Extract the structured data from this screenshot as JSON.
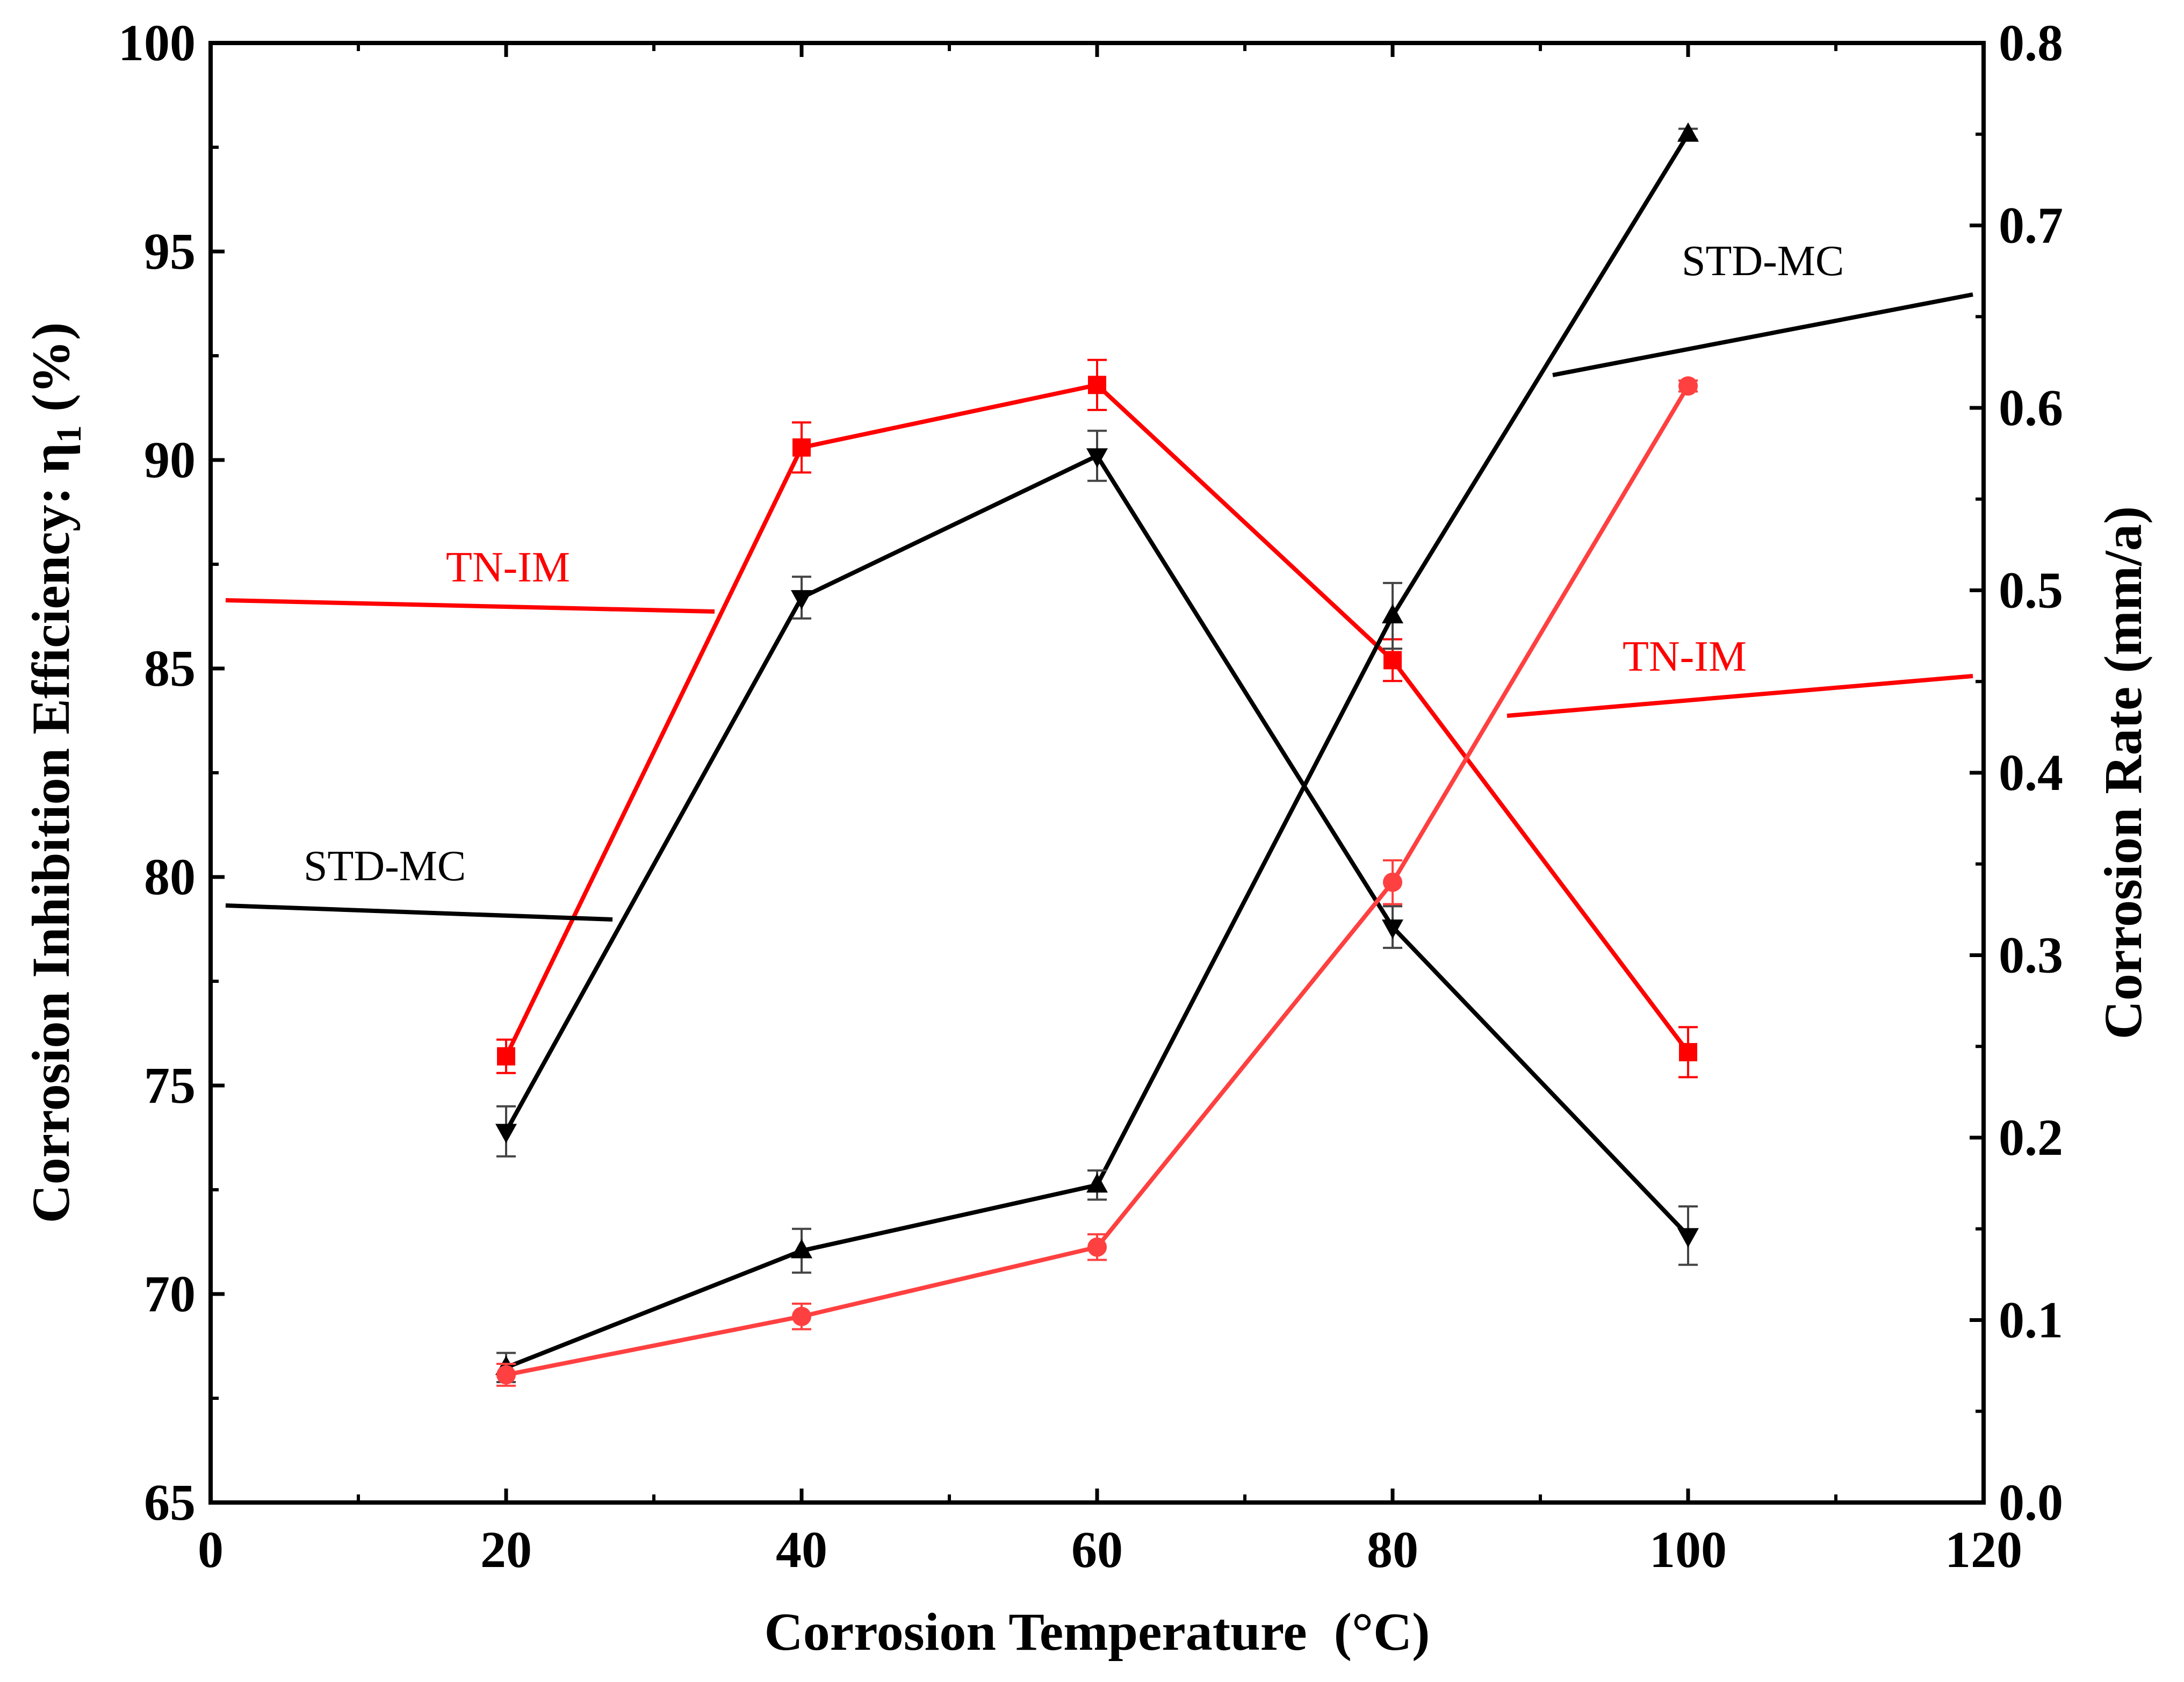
{
  "chart_data": {
    "type": "line",
    "x": [
      20,
      40,
      60,
      80,
      100
    ],
    "xlabel": "Corrosion Temperature  (°C)",
    "ylabel_left_main": "Corrosion Inhibition Efficiency: η",
    "ylabel_left_sub": "1",
    "ylabel_left_unit": " (%)",
    "ylabel_right": "Corrosion Rate (mm/a)",
    "xlim": [
      0,
      120
    ],
    "ylim_left": [
      65,
      100
    ],
    "ylim_right": [
      0.0,
      0.8
    ],
    "xticks": [
      "0",
      "20",
      "40",
      "60",
      "80",
      "100",
      "120"
    ],
    "yticks_left": [
      "65",
      "70",
      "75",
      "80",
      "85",
      "90",
      "95",
      "100"
    ],
    "yticks_right": [
      "0.0",
      "0.1",
      "0.2",
      "0.3",
      "0.4",
      "0.5",
      "0.6",
      "0.7",
      "0.8"
    ],
    "grid": false,
    "colors": {
      "red": "#ff0000",
      "red_light": "#ff4040",
      "black": "#000000"
    },
    "series": [
      {
        "axis": "left",
        "marker": "square",
        "color": "#ff0000",
        "values": [
          75.7,
          90.3,
          91.8,
          85.2,
          75.8
        ],
        "errors": [
          0.4,
          0.6,
          0.6,
          0.5,
          0.6
        ]
      },
      {
        "axis": "left",
        "marker": "triangle-down",
        "color": "#000000",
        "values": [
          73.9,
          86.7,
          90.1,
          78.8,
          71.4
        ],
        "errors": [
          0.6,
          0.5,
          0.6,
          0.5,
          0.7
        ]
      },
      {
        "axis": "right",
        "marker": "triangle-up",
        "color": "#000000",
        "values": [
          0.074,
          0.138,
          0.174,
          0.486,
          0.75
        ],
        "errors": [
          0.008,
          0.012,
          0.008,
          0.018,
          0.003
        ]
      },
      {
        "axis": "right",
        "marker": "circle",
        "color": "#ff4040",
        "values": [
          0.07,
          0.102,
          0.14,
          0.34,
          0.612
        ],
        "errors": [
          0.006,
          0.007,
          0.007,
          0.012,
          0.003
        ]
      }
    ],
    "annotations": [
      {
        "text": "TN-IM",
        "color": "#ff0000",
        "points_to": "left-axis"
      },
      {
        "text": "STD-MC",
        "color": "#000000",
        "points_to": "left-axis"
      },
      {
        "text": "STD-MC",
        "color": "#000000",
        "points_to": "right-axis"
      },
      {
        "text": "TN-IM",
        "color": "#ff0000",
        "points_to": "right-axis"
      }
    ]
  }
}
